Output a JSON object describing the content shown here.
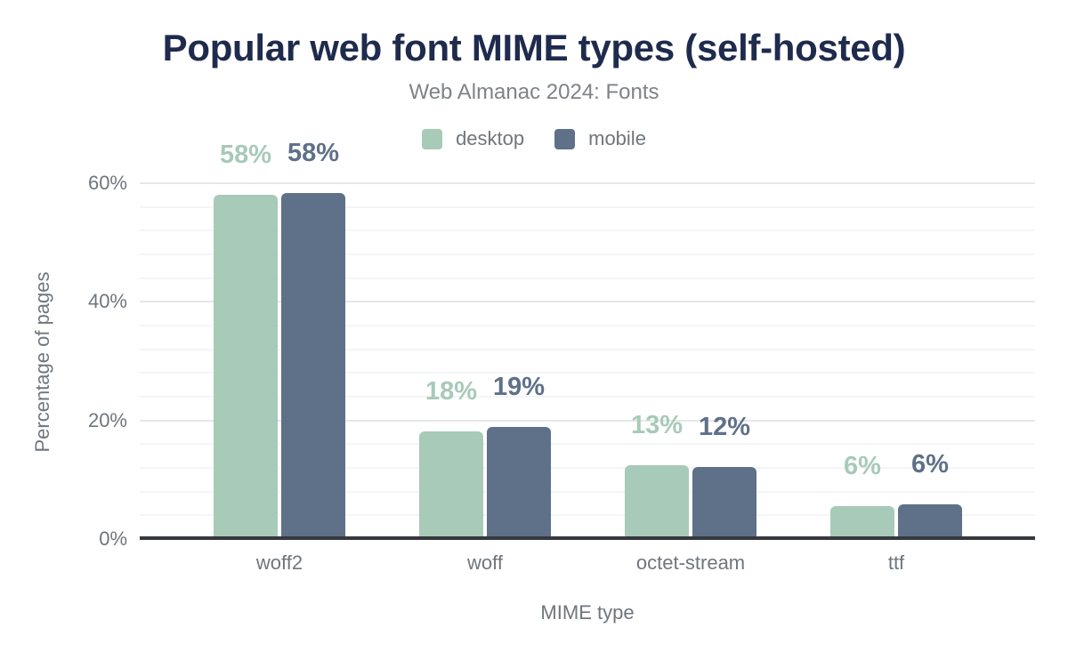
{
  "chart_data": {
    "type": "bar",
    "title": "Popular web font MIME types (self-hosted)",
    "subtitle": "Web Almanac 2024: Fonts",
    "categories": [
      "woff2",
      "woff",
      "octet-stream",
      "ttf"
    ],
    "series": [
      {
        "name": "desktop",
        "color": "#a8cab8",
        "values": [
          58.1,
          18.1,
          12.5,
          5.6
        ],
        "display_values": [
          "58%",
          "18%",
          "13%",
          "6%"
        ]
      },
      {
        "name": "mobile",
        "color": "#5f7089",
        "values": [
          58.4,
          18.9,
          12.2,
          5.8
        ],
        "display_values": [
          "58%",
          "19%",
          "12%",
          "6%"
        ]
      }
    ],
    "xlabel": "MIME type",
    "ylabel": "Percentage of pages",
    "ylim": [
      0,
      62.4
    ],
    "yticks": [
      {
        "value": 0,
        "label": "0%"
      },
      {
        "value": 20,
        "label": "20%"
      },
      {
        "value": 40,
        "label": "40%"
      },
      {
        "value": 60,
        "label": "60%"
      }
    ],
    "minor_grid_step": 4,
    "grid": true,
    "legend_position": "top-center"
  },
  "colors": {
    "title": "#1e2b4d",
    "subtitle": "#7e8387",
    "axis_text": "#6f767d",
    "axis_line": "#35383d",
    "grid_major": "#e5e7e9",
    "grid_minor": "#f4f5f6",
    "background": "#ffffff"
  }
}
